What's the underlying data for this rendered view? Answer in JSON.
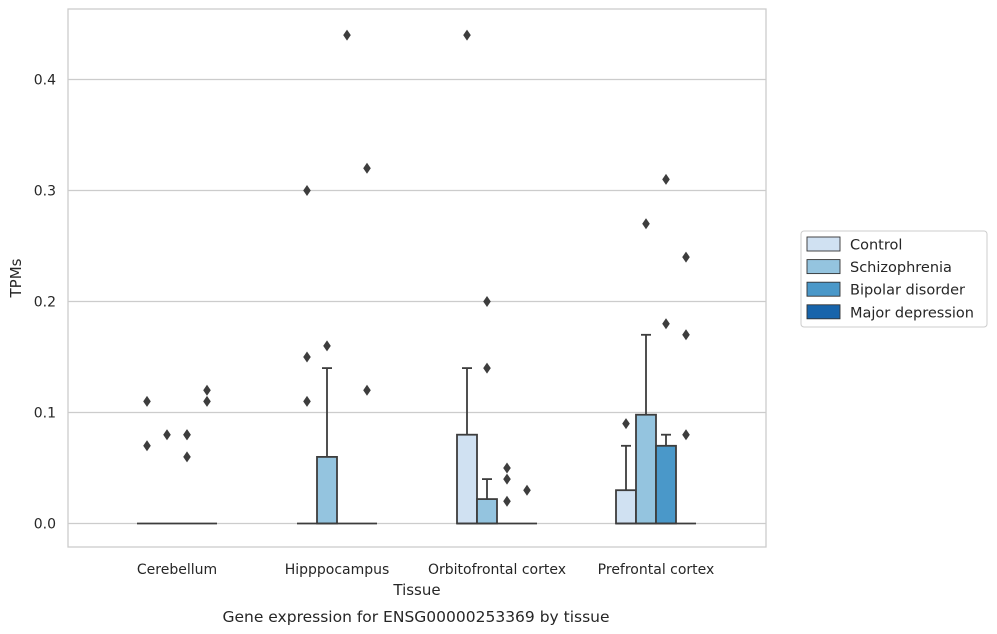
{
  "chart_data": {
    "type": "boxplot",
    "caption": "Gene expression for ENSG00000253369 by tissue",
    "xlabel": "Tissue",
    "ylabel": "TPMs",
    "ylim": [
      -0.022,
      0.465
    ],
    "yticks": [
      0.0,
      0.1,
      0.2,
      0.3,
      0.4
    ],
    "ytick_labels": [
      "0.0",
      "0.1",
      "0.2",
      "0.3",
      "0.4"
    ],
    "grid": "horizontal",
    "legend_position": "right",
    "categories": [
      "Cerebellum",
      "Hipppocampus",
      "Orbitofrontal cortex",
      "Prefrontal cortex"
    ],
    "series": [
      {
        "name": "Control",
        "color": "#d0e1f2"
      },
      {
        "name": "Schizophrenia",
        "color": "#94c4df"
      },
      {
        "name": "Bipolar disorder",
        "color": "#4a98c9"
      },
      {
        "name": "Major depression",
        "color": "#1764ab"
      }
    ],
    "boxes": [
      [
        {
          "q1": 0,
          "median": 0,
          "q3": 0,
          "whisker_low": 0,
          "whisker_high": 0,
          "outliers": [
            0.07,
            0.11
          ]
        },
        {
          "q1": 0,
          "median": 0,
          "q3": 0,
          "whisker_low": 0,
          "whisker_high": 0,
          "outliers": [
            0.08
          ]
        },
        {
          "q1": 0,
          "median": 0,
          "q3": 0,
          "whisker_low": 0,
          "whisker_high": 0,
          "outliers": [
            0.06,
            0.08,
            0.08
          ]
        },
        {
          "q1": 0,
          "median": 0,
          "q3": 0,
          "whisker_low": 0,
          "whisker_high": 0,
          "outliers": [
            0.11,
            0.12
          ]
        }
      ],
      [
        {
          "q1": 0,
          "median": 0,
          "q3": 0,
          "whisker_low": 0,
          "whisker_high": 0,
          "outliers": [
            0.11,
            0.15,
            0.3
          ]
        },
        {
          "q1": 0,
          "median": 0,
          "q3": 0.06,
          "whisker_low": 0,
          "whisker_high": 0.14,
          "outliers": [
            0.16
          ]
        },
        {
          "q1": 0,
          "median": 0,
          "q3": 0,
          "whisker_low": 0,
          "whisker_high": 0,
          "outliers": [
            0.44
          ]
        },
        {
          "q1": 0,
          "median": 0,
          "q3": 0,
          "whisker_low": 0,
          "whisker_high": 0,
          "outliers": [
            0.12,
            0.32
          ]
        }
      ],
      [
        {
          "q1": 0,
          "median": 0,
          "q3": 0.08,
          "whisker_low": 0,
          "whisker_high": 0.14,
          "outliers": [
            0.44
          ]
        },
        {
          "q1": 0,
          "median": 0,
          "q3": 0.022,
          "whisker_low": 0,
          "whisker_high": 0.04,
          "outliers": [
            0.14,
            0.2
          ]
        },
        {
          "q1": 0,
          "median": 0,
          "q3": 0,
          "whisker_low": 0,
          "whisker_high": 0,
          "outliers": [
            0.02,
            0.04,
            0.05
          ]
        },
        {
          "q1": 0,
          "median": 0,
          "q3": 0,
          "whisker_low": 0,
          "whisker_high": 0,
          "outliers": [
            0.03
          ]
        }
      ],
      [
        {
          "q1": 0,
          "median": 0,
          "q3": 0.03,
          "whisker_low": 0,
          "whisker_high": 0.07,
          "outliers": [
            0.09
          ]
        },
        {
          "q1": 0,
          "median": 0,
          "q3": 0.098,
          "whisker_low": 0,
          "whisker_high": 0.17,
          "outliers": [
            0.27
          ]
        },
        {
          "q1": 0,
          "median": 0,
          "q3": 0.07,
          "whisker_low": 0,
          "whisker_high": 0.08,
          "outliers": [
            0.18,
            0.31
          ]
        },
        {
          "q1": 0,
          "median": 0,
          "q3": 0,
          "whisker_low": 0,
          "whisker_high": 0,
          "outliers": [
            0.08,
            0.17,
            0.24
          ]
        }
      ]
    ]
  }
}
